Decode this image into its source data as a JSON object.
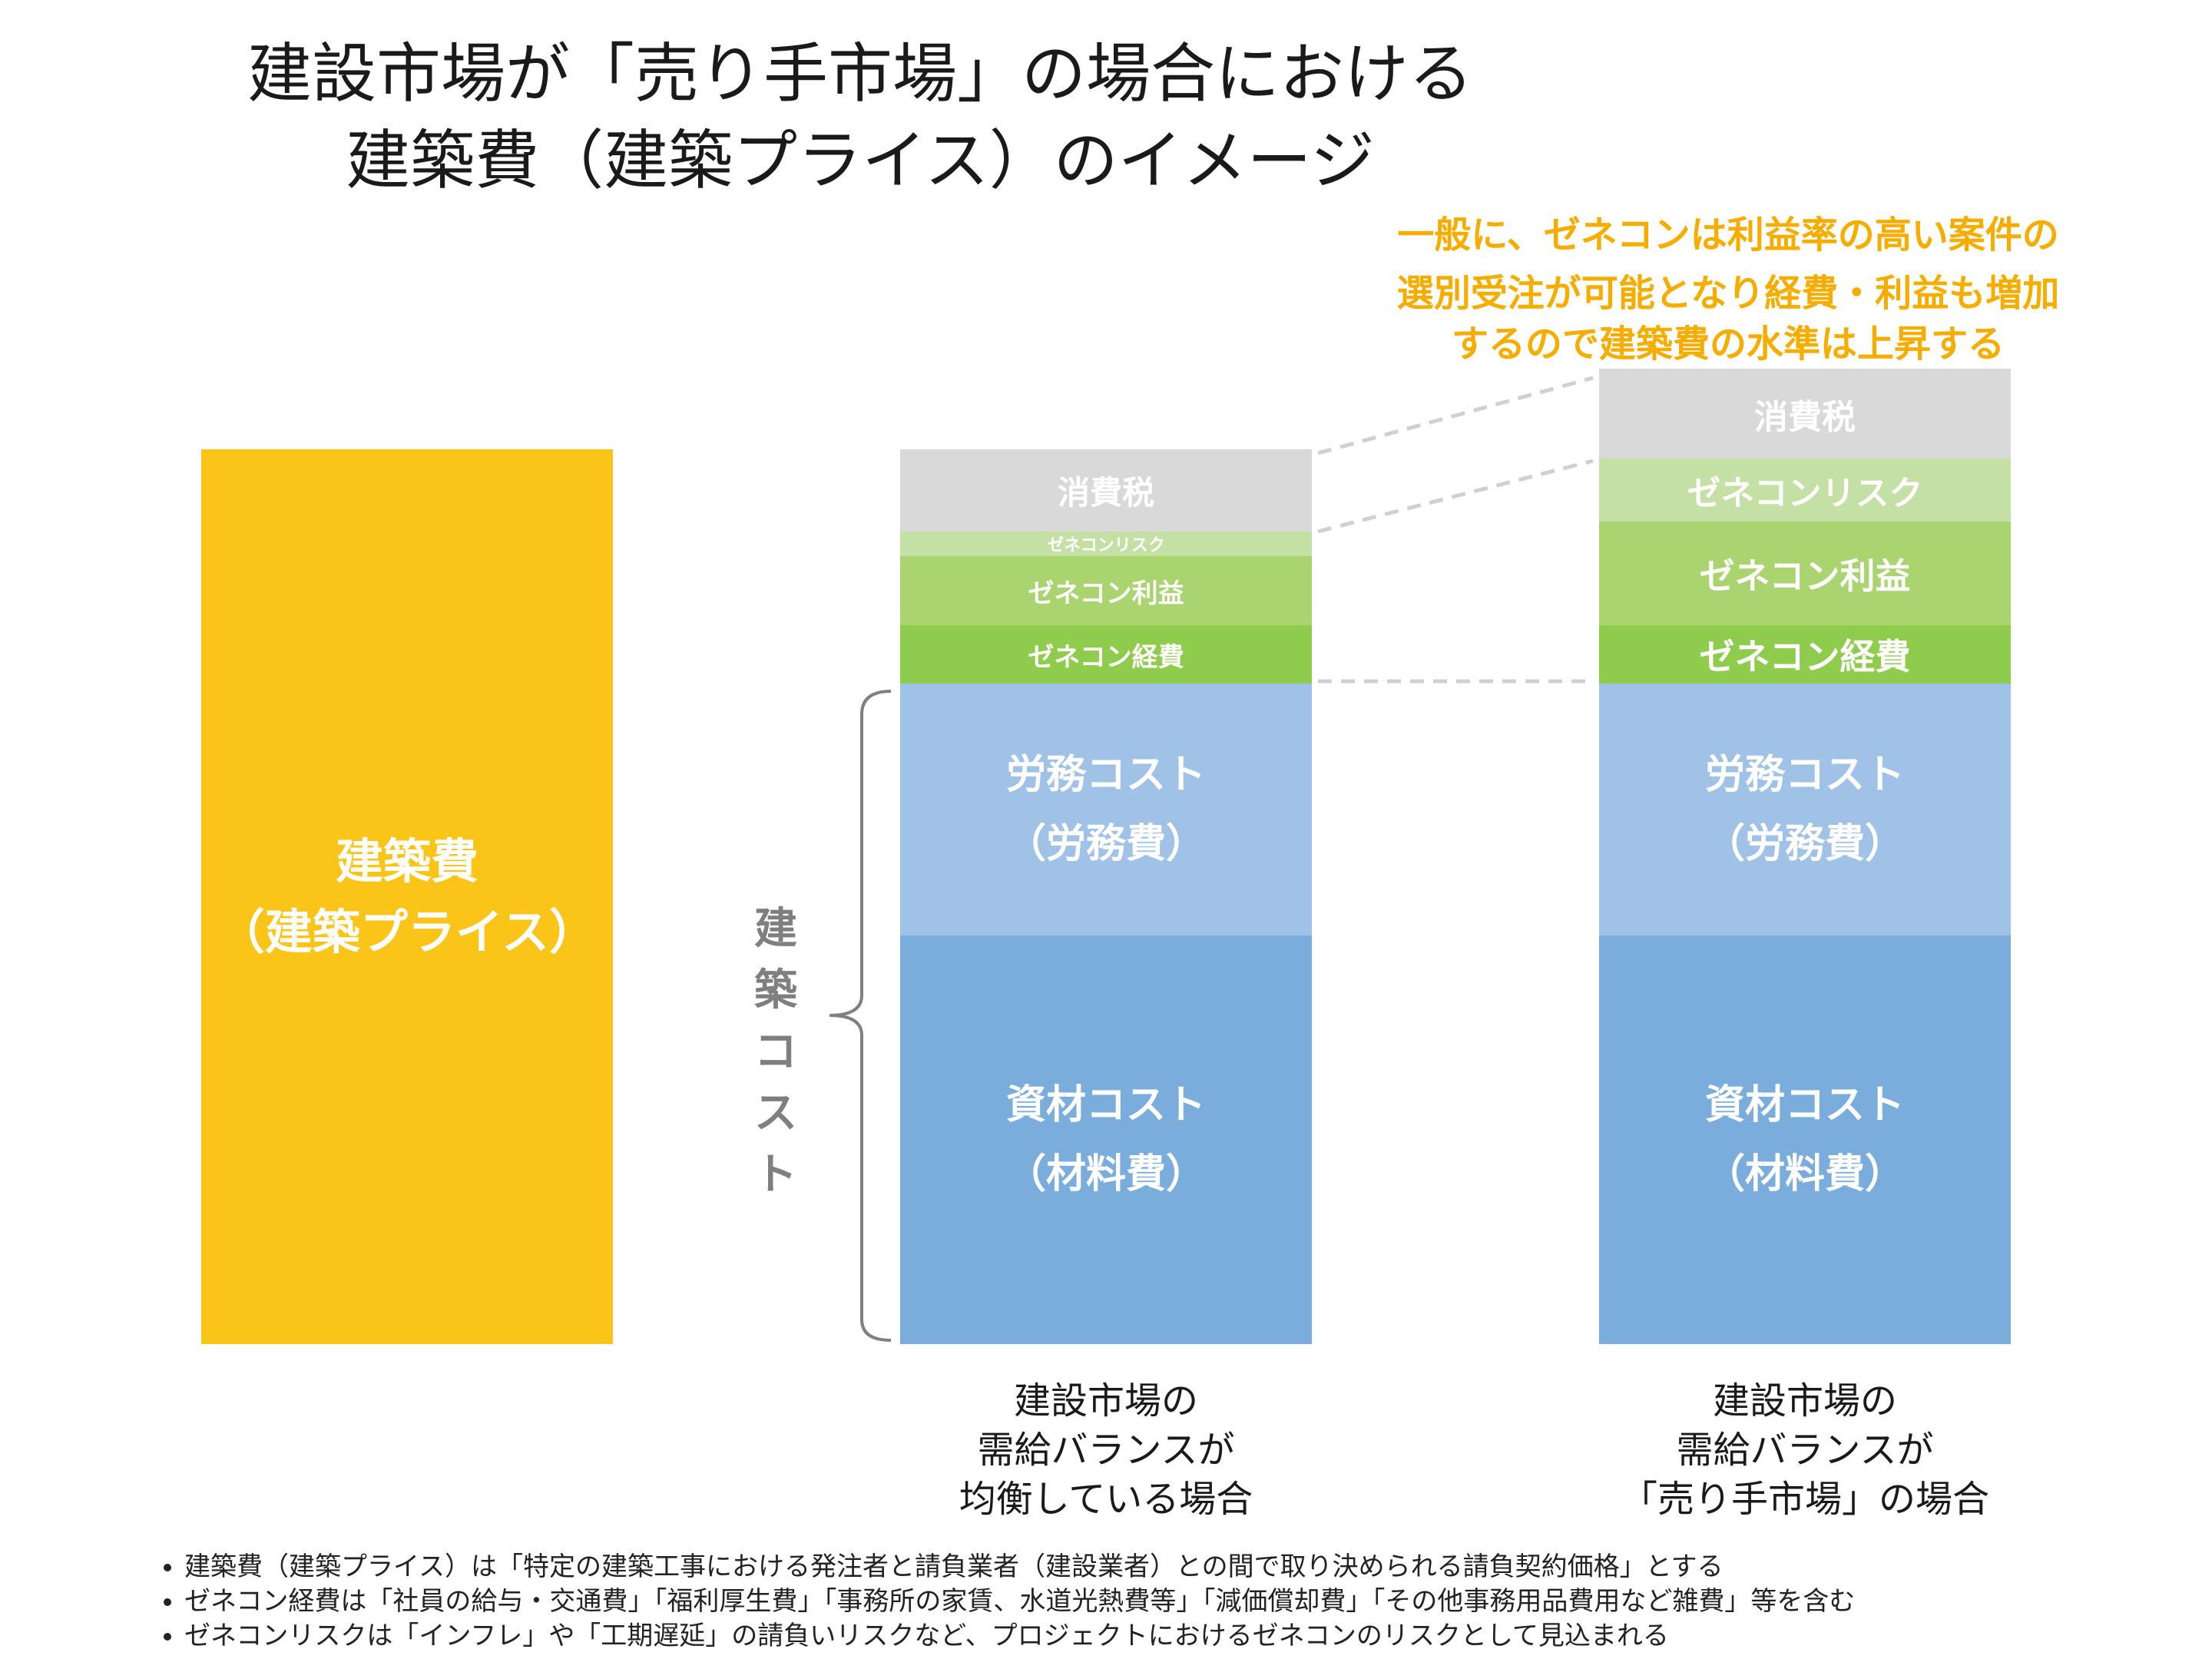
{
  "title": {
    "line1": "建設市場が「売り手市場」の場合における",
    "line2": "建築費（建築プライス）のイメージ"
  },
  "callout": {
    "line1": "一般に、ゼネコンは利益率の高い案件の",
    "line2": "選別受注が可能となり経費・利益も増加",
    "line3": "するので建築費の水準は上昇する",
    "color": "#f7ac00"
  },
  "price_bar": {
    "line1": "建築費",
    "line2": "（建築プライス）",
    "color": "#fbc419"
  },
  "cost_brace_label": "建築コスト",
  "columns": [
    {
      "segments": {
        "tax": "消費税",
        "risk": "ゼネコンリスク",
        "profit": "ゼネコン利益",
        "expense": "ゼネコン経費",
        "labor_1": "労務コスト",
        "labor_2": "（労務費）",
        "material_1": "資材コスト",
        "material_2": "（材料費）"
      },
      "caption": [
        "建設市場の",
        "需給バランスが",
        "均衡している場合"
      ]
    },
    {
      "segments": {
        "tax": "消費税",
        "risk": "ゼネコンリスク",
        "profit": "ゼネコン利益",
        "expense": "ゼネコン経費",
        "labor_1": "労務コスト",
        "labor_2": "（労務費）",
        "material_1": "資材コスト",
        "material_2": "（材料費）"
      },
      "caption": [
        "建設市場の",
        "需給バランスが",
        "「売り手市場」の場合"
      ]
    }
  ],
  "colors": {
    "tax": "#d9d9d9",
    "risk": "#c5e0a5",
    "profit": "#a9d46f",
    "expense": "#8fcc4e",
    "labor": "#9fc2e6",
    "material": "#7aaddc",
    "brace": "#7f7f7f",
    "dashed": "#d0d0d0"
  },
  "notes": [
    "建築費（建築プライス）は「特定の建築工事における発注者と請負業者（建設業者）との間で取り決められる請負契約価格」とする",
    "ゼネコン経費は「社員の給与・交通費」「福利厚生費」「事務所の家賃、水道光熱費等」「減価償却費」「その他事務用品費用など雑費」等を含む",
    "ゼネコンリスクは「インフレ」や「工期遅延」の請負いリスクなど、プロジェクトにおけるゼネコンのリスクとして見込まれる"
  ]
}
